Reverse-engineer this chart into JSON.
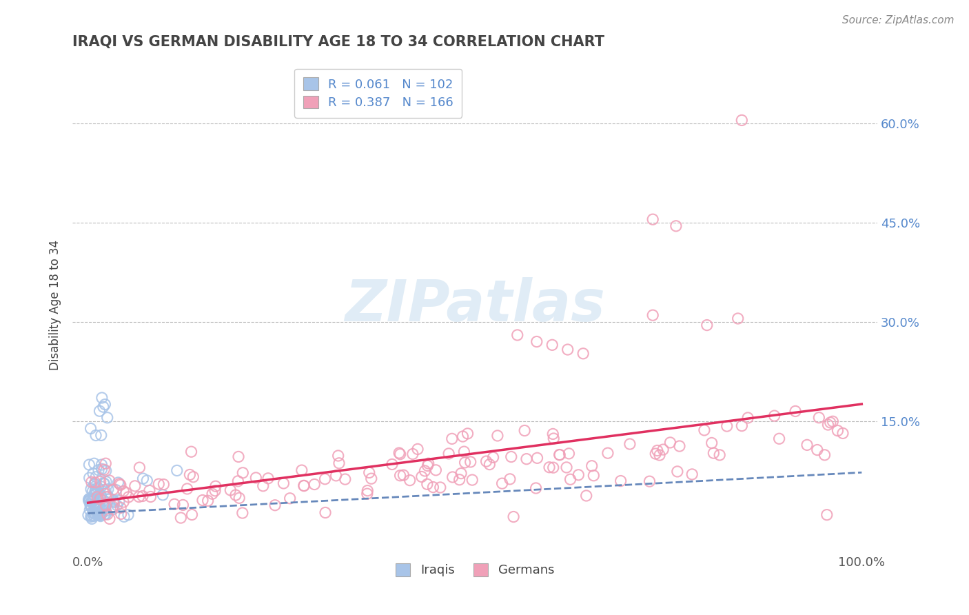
{
  "title": "IRAQI VS GERMAN DISABILITY AGE 18 TO 34 CORRELATION CHART",
  "source": "Source: ZipAtlas.com",
  "ylabel": "Disability Age 18 to 34",
  "legend_label1": "Iraqis",
  "legend_label2": "Germans",
  "r1": 0.061,
  "n1": 102,
  "r2": 0.387,
  "n2": 166,
  "color1": "#a8c4e8",
  "color2": "#f0a0b8",
  "trendline_iraqi_color": "#6688bb",
  "trendline_german_color": "#e03060",
  "watermark_color": "#cce0f0",
  "background_color": "#ffffff",
  "grid_color": "#bbbbbb",
  "title_color": "#444444",
  "source_color": "#888888",
  "right_axis_color": "#5588cc",
  "xlim": [
    -0.02,
    1.02
  ],
  "ylim": [
    -0.05,
    0.7
  ],
  "y_ticks": [
    0.15,
    0.3,
    0.45,
    0.6
  ],
  "y_tick_labels": [
    "15.0%",
    "30.0%",
    "45.0%",
    "60.0%"
  ],
  "x_ticks": [
    0.0,
    1.0
  ],
  "x_tick_labels": [
    "0.0%",
    "100.0%"
  ]
}
